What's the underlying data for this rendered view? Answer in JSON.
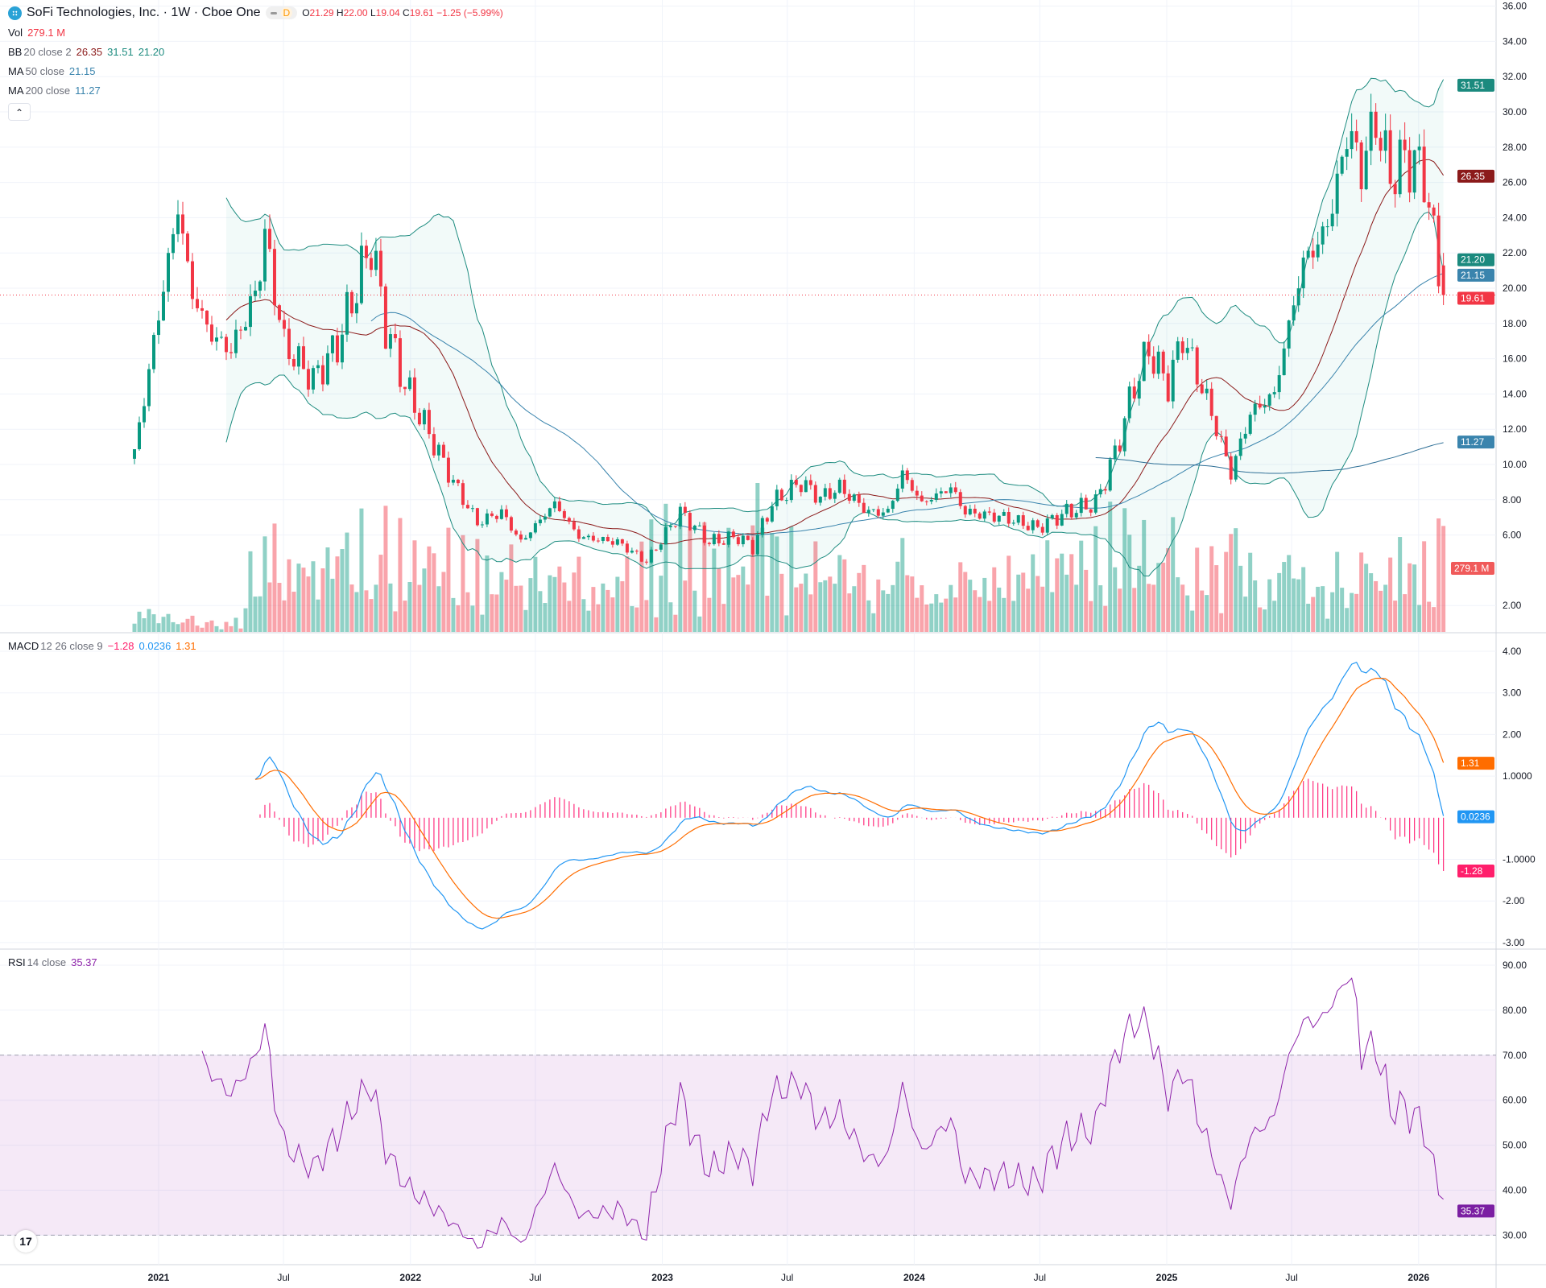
{
  "header": {
    "title": "SoFi Technologies, Inc. · 1W · Cboe One",
    "market_status_label": "D",
    "ohlc": {
      "o_label": "O",
      "o": "21.29",
      "h_label": "H",
      "h": "22.00",
      "l_label": "L",
      "l": "19.04",
      "c_label": "C",
      "c": "19.61",
      "change": "−1.25 (−5.99%)"
    },
    "collapse_icon": "chevron-up-icon"
  },
  "legends": {
    "vol": {
      "name": "Vol",
      "value": "279.1 M"
    },
    "bb": {
      "name": "BB",
      "params": "20 close 2",
      "basis": "26.35",
      "upper": "31.51",
      "lower": "21.20"
    },
    "ma50": {
      "name": "MA",
      "params": "50 close",
      "value": "21.15"
    },
    "ma200": {
      "name": "MA",
      "params": "200 close",
      "value": "11.27"
    },
    "macd": {
      "name": "MACD",
      "params": "12 26 close 9",
      "hist": "−1.28",
      "macd": "0.0236",
      "signal": "1.31"
    },
    "rsi": {
      "name": "RSI",
      "params": "14 close",
      "value": "35.37"
    }
  },
  "colors": {
    "up": "#089981",
    "down": "#f23645",
    "bb": "#1e8c80",
    "bb_basis": "#8b1a1a",
    "ma50": "#3a84ad",
    "ma200": "#2e6f96",
    "macd": "#2196f3",
    "signal": "#ff6d00",
    "hist": "#ff2e7e",
    "rsi": "#8e24aa"
  },
  "chart_data": [
    {
      "type": "candlestick",
      "title": "SoFi Technologies, Inc. · 1W · Cboe One",
      "ylim": [
        1,
        36
      ],
      "yticks": [
        "36.00",
        "34.00",
        "32.00",
        "30.00",
        "28.00",
        "26.00",
        "24.00",
        "22.00",
        "20.00",
        "18.00",
        "16.00",
        "14.00",
        "12.00",
        "10.00",
        "8.00",
        "6.00",
        "2.00"
      ],
      "xticks": [
        {
          "label": "2021",
          "date": "2021-01-01"
        },
        {
          "label": "Jul",
          "date": "2021-07-01"
        },
        {
          "label": "2022",
          "date": "2022-01-01"
        },
        {
          "label": "Jul",
          "date": "2022-07-01"
        },
        {
          "label": "2023",
          "date": "2023-01-01"
        },
        {
          "label": "Jul",
          "date": "2023-07-01"
        },
        {
          "label": "2024",
          "date": "2024-01-01"
        },
        {
          "label": "Jul",
          "date": "2024-07-01"
        },
        {
          "label": "2025",
          "date": "2025-01-01"
        },
        {
          "label": "Jul",
          "date": "2025-07-01"
        },
        {
          "label": "2026",
          "date": "2026-01-01"
        }
      ],
      "close_path": [
        [
          "2020-11-27",
          10.6
        ],
        [
          "2021-01-01",
          18.5
        ],
        [
          "2021-01-29",
          24.6
        ],
        [
          "2021-02-19",
          19.6
        ],
        [
          "2021-03-19",
          17.3
        ],
        [
          "2021-04-16",
          16.5
        ],
        [
          "2021-05-21",
          19.6
        ],
        [
          "2021-06-04",
          23.0
        ],
        [
          "2021-07-02",
          16.8
        ],
        [
          "2021-08-13",
          14.8
        ],
        [
          "2021-09-17",
          16.8
        ],
        [
          "2021-10-15",
          20.1
        ],
        [
          "2021-11-05",
          22.6
        ],
        [
          "2021-11-26",
          17.9
        ],
        [
          "2021-12-24",
          14.5
        ],
        [
          "2022-01-21",
          12.3
        ],
        [
          "2022-03-04",
          9.0
        ],
        [
          "2022-04-08",
          6.7
        ],
        [
          "2022-05-13",
          7.3
        ],
        [
          "2022-06-10",
          5.6
        ],
        [
          "2022-07-29",
          7.8
        ],
        [
          "2022-09-02",
          5.9
        ],
        [
          "2022-10-28",
          5.6
        ],
        [
          "2022-12-09",
          4.5
        ],
        [
          "2023-01-27",
          7.3
        ],
        [
          "2023-03-10",
          5.6
        ],
        [
          "2023-04-21",
          5.9
        ],
        [
          "2023-05-12",
          5.3
        ],
        [
          "2023-06-09",
          7.8
        ],
        [
          "2023-07-21",
          9.0
        ],
        [
          "2023-08-18",
          8.1
        ],
        [
          "2023-09-15",
          8.7
        ],
        [
          "2023-10-27",
          7.3
        ],
        [
          "2023-11-24",
          7.3
        ],
        [
          "2023-12-15",
          9.5
        ],
        [
          "2024-01-12",
          7.8
        ],
        [
          "2024-02-23",
          8.7
        ],
        [
          "2024-03-15",
          7.3
        ],
        [
          "2024-05-10",
          7.0
        ],
        [
          "2024-06-28",
          6.4
        ],
        [
          "2024-08-09",
          7.3
        ],
        [
          "2024-09-20",
          7.8
        ],
        [
          "2024-10-18",
          10.6
        ],
        [
          "2024-11-15",
          14.5
        ],
        [
          "2024-12-06",
          16.5
        ],
        [
          "2025-01-03",
          14.5
        ],
        [
          "2025-01-24",
          17.3
        ],
        [
          "2025-03-07",
          12.9
        ],
        [
          "2025-04-04",
          9.5
        ],
        [
          "2025-05-02",
          12.9
        ],
        [
          "2025-06-06",
          14.0
        ],
        [
          "2025-06-27",
          17.9
        ],
        [
          "2025-07-18",
          21.5
        ],
        [
          "2025-08-15",
          22.9
        ],
        [
          "2025-09-05",
          25.7
        ],
        [
          "2025-09-19",
          29.0
        ],
        [
          "2025-10-10",
          26.8
        ],
        [
          "2025-10-31",
          29.6
        ],
        [
          "2025-11-21",
          26.3
        ],
        [
          "2025-12-12",
          27.4
        ],
        [
          "2026-01-09",
          26.6
        ],
        [
          "2026-01-23",
          22.6
        ],
        [
          "2026-02-06",
          19.61
        ]
      ],
      "last_bar": {
        "open": 21.29,
        "high": 22.0,
        "low": 19.04,
        "close": 19.61,
        "volume_m": 279.1
      },
      "price_labels": {
        "bb_upper": "31.51",
        "bb_basis": "26.35",
        "bb_lower": "21.20",
        "ma50": "21.15",
        "last": "19.61",
        "ma200": "11.27",
        "volume": "279.1 M"
      }
    },
    {
      "type": "line",
      "name": "MACD 12 26 close 9",
      "ylim": [
        -3,
        4
      ],
      "yticks": [
        "4.00",
        "3.00",
        "2.00",
        "1.0000",
        "-1.0000",
        "-2.00",
        "-3.00"
      ],
      "last": {
        "macd": "0.0236",
        "signal": "1.31",
        "hist": "-1.28"
      }
    },
    {
      "type": "line",
      "name": "RSI 14 close",
      "ylim": [
        30,
        90
      ],
      "yticks": [
        "90.00",
        "80.00",
        "70.00",
        "60.00",
        "50.00",
        "40.00",
        "30.00"
      ],
      "bands": [
        30,
        70
      ],
      "last": "35.37"
    }
  ]
}
